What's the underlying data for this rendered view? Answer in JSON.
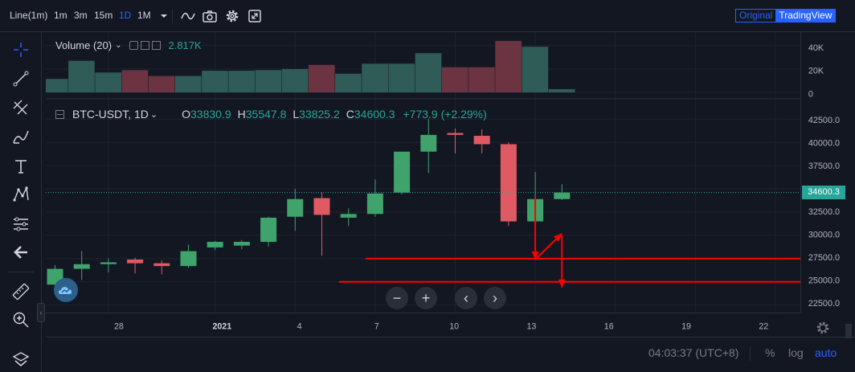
{
  "toolbar": {
    "chart_type": "Line(1m)",
    "timeframes": [
      "1m",
      "3m",
      "15m",
      "1D",
      "1M"
    ],
    "active_timeframe": "1D",
    "view_original": "Original",
    "view_tradingview": "TradingView"
  },
  "legend": {
    "volume_label": "Volume (20)",
    "volume_value": "2.817K",
    "symbol": "BTC-USDT, 1D",
    "open_label": "O",
    "open_value": "33830.9",
    "high_label": "H",
    "high_value": "35547.8",
    "low_label": "L",
    "low_value": "33825.2",
    "close_label": "C",
    "close_value": "34600.3",
    "change": "+773.9 (+2.29%)"
  },
  "last_price_label": "34600.3",
  "time_display": "04:03:37 (UTC+8)",
  "scale_options": [
    "%",
    "log",
    "auto"
  ],
  "colors": {
    "up": "#26a69a",
    "up_body": "#3fa36b",
    "down": "#e05a63",
    "annotation": "#ff0000",
    "accent": "#2962ff"
  },
  "chart_data": {
    "type": "candlestick",
    "symbol": "BTC-USDT",
    "interval": "1D",
    "x_ticks": [
      "28",
      "2021",
      "4",
      "7",
      "10",
      "13",
      "16",
      "19",
      "22"
    ],
    "price_ticks": [
      "42500.0",
      "40000.0",
      "37500.0",
      "35000.0",
      "32500.0",
      "30000.0",
      "27500.0",
      "25000.0",
      "22500.0"
    ],
    "price_tick_values": [
      42500,
      40000,
      37500,
      35000,
      32500,
      30000,
      27500,
      25000,
      22500
    ],
    "volume_ticks": [
      "40K",
      "20K",
      "0"
    ],
    "volume_tick_values": [
      40000,
      20000,
      0
    ],
    "ylim": [
      21700,
      43900
    ],
    "volume_ylim": [
      0,
      46000
    ],
    "candles": [
      {
        "date": "2020-12-26",
        "open": 24700,
        "high": 26800,
        "low": 24500,
        "close": 26400,
        "volume": 11500
      },
      {
        "date": "2020-12-27",
        "open": 26400,
        "high": 28300,
        "low": 25200,
        "close": 26900,
        "volume": 27000
      },
      {
        "date": "2020-12-28",
        "open": 26900,
        "high": 27500,
        "low": 26000,
        "close": 27100,
        "volume": 17000
      },
      {
        "date": "2020-12-29",
        "open": 27400,
        "high": 27600,
        "low": 25900,
        "close": 27000,
        "volume": 19000
      },
      {
        "date": "2020-12-30",
        "open": 27000,
        "high": 27300,
        "low": 25800,
        "close": 26700,
        "volume": 14000
      },
      {
        "date": "2020-12-31",
        "open": 26700,
        "high": 29000,
        "low": 26500,
        "close": 28300,
        "volume": 14000
      },
      {
        "date": "2021-01-01",
        "open": 28700,
        "high": 29400,
        "low": 28400,
        "close": 29300,
        "volume": 18500
      },
      {
        "date": "2021-01-02",
        "open": 28900,
        "high": 29500,
        "low": 28500,
        "close": 29300,
        "volume": 18500
      },
      {
        "date": "2021-01-03",
        "open": 29300,
        "high": 32000,
        "low": 28800,
        "close": 31900,
        "volume": 19000
      },
      {
        "date": "2021-01-04",
        "open": 32000,
        "high": 35000,
        "low": 30500,
        "close": 33900,
        "volume": 20000
      },
      {
        "date": "2021-01-05",
        "open": 34000,
        "high": 34600,
        "low": 27800,
        "close": 32200,
        "volume": 23500
      },
      {
        "date": "2021-01-06",
        "open": 31900,
        "high": 32900,
        "low": 31000,
        "close": 32300,
        "volume": 16000
      },
      {
        "date": "2021-01-07",
        "open": 32300,
        "high": 36000,
        "low": 32000,
        "close": 34500,
        "volume": 24500
      },
      {
        "date": "2021-01-08",
        "open": 34600,
        "high": 39000,
        "low": 34400,
        "close": 39000,
        "volume": 24500
      },
      {
        "date": "2021-01-09",
        "open": 39000,
        "high": 42500,
        "low": 36700,
        "close": 40800,
        "volume": 33500
      },
      {
        "date": "2021-01-10",
        "open": 41000,
        "high": 41500,
        "low": 38800,
        "close": 40800,
        "volume": 21500
      },
      {
        "date": "2021-01-11",
        "open": 40700,
        "high": 41400,
        "low": 38800,
        "close": 39800,
        "volume": 21500
      },
      {
        "date": "2021-01-12",
        "open": 39800,
        "high": 40000,
        "low": 31000,
        "close": 31500,
        "volume": 44000
      },
      {
        "date": "2021-01-13",
        "open": 31500,
        "high": 36800,
        "low": 30500,
        "close": 33900,
        "volume": 39000
      },
      {
        "date": "2021-01-14",
        "open": 33900,
        "high": 35500,
        "low": 33800,
        "close": 34600,
        "volume": 2817
      }
    ],
    "annotations": {
      "horizontal_lines": [
        {
          "price": 27500,
          "from_date": "2021-01-07",
          "to_date": "2021-01-27"
        },
        {
          "price": 25000,
          "from_date": "2021-01-06",
          "to_date": "2021-01-27"
        }
      ],
      "arrows": [
        {
          "from": {
            "date": "2021-01-13",
            "price": 34000
          },
          "to": {
            "date": "2021-01-13",
            "price": 27400
          }
        },
        {
          "from": {
            "date": "2021-01-13",
            "price": 27400
          },
          "to": {
            "date": "2021-01-14",
            "price": 30200
          }
        },
        {
          "from": {
            "date": "2021-01-14",
            "price": 30000
          },
          "to": {
            "date": "2021-01-14",
            "price": 24400
          }
        }
      ]
    }
  }
}
